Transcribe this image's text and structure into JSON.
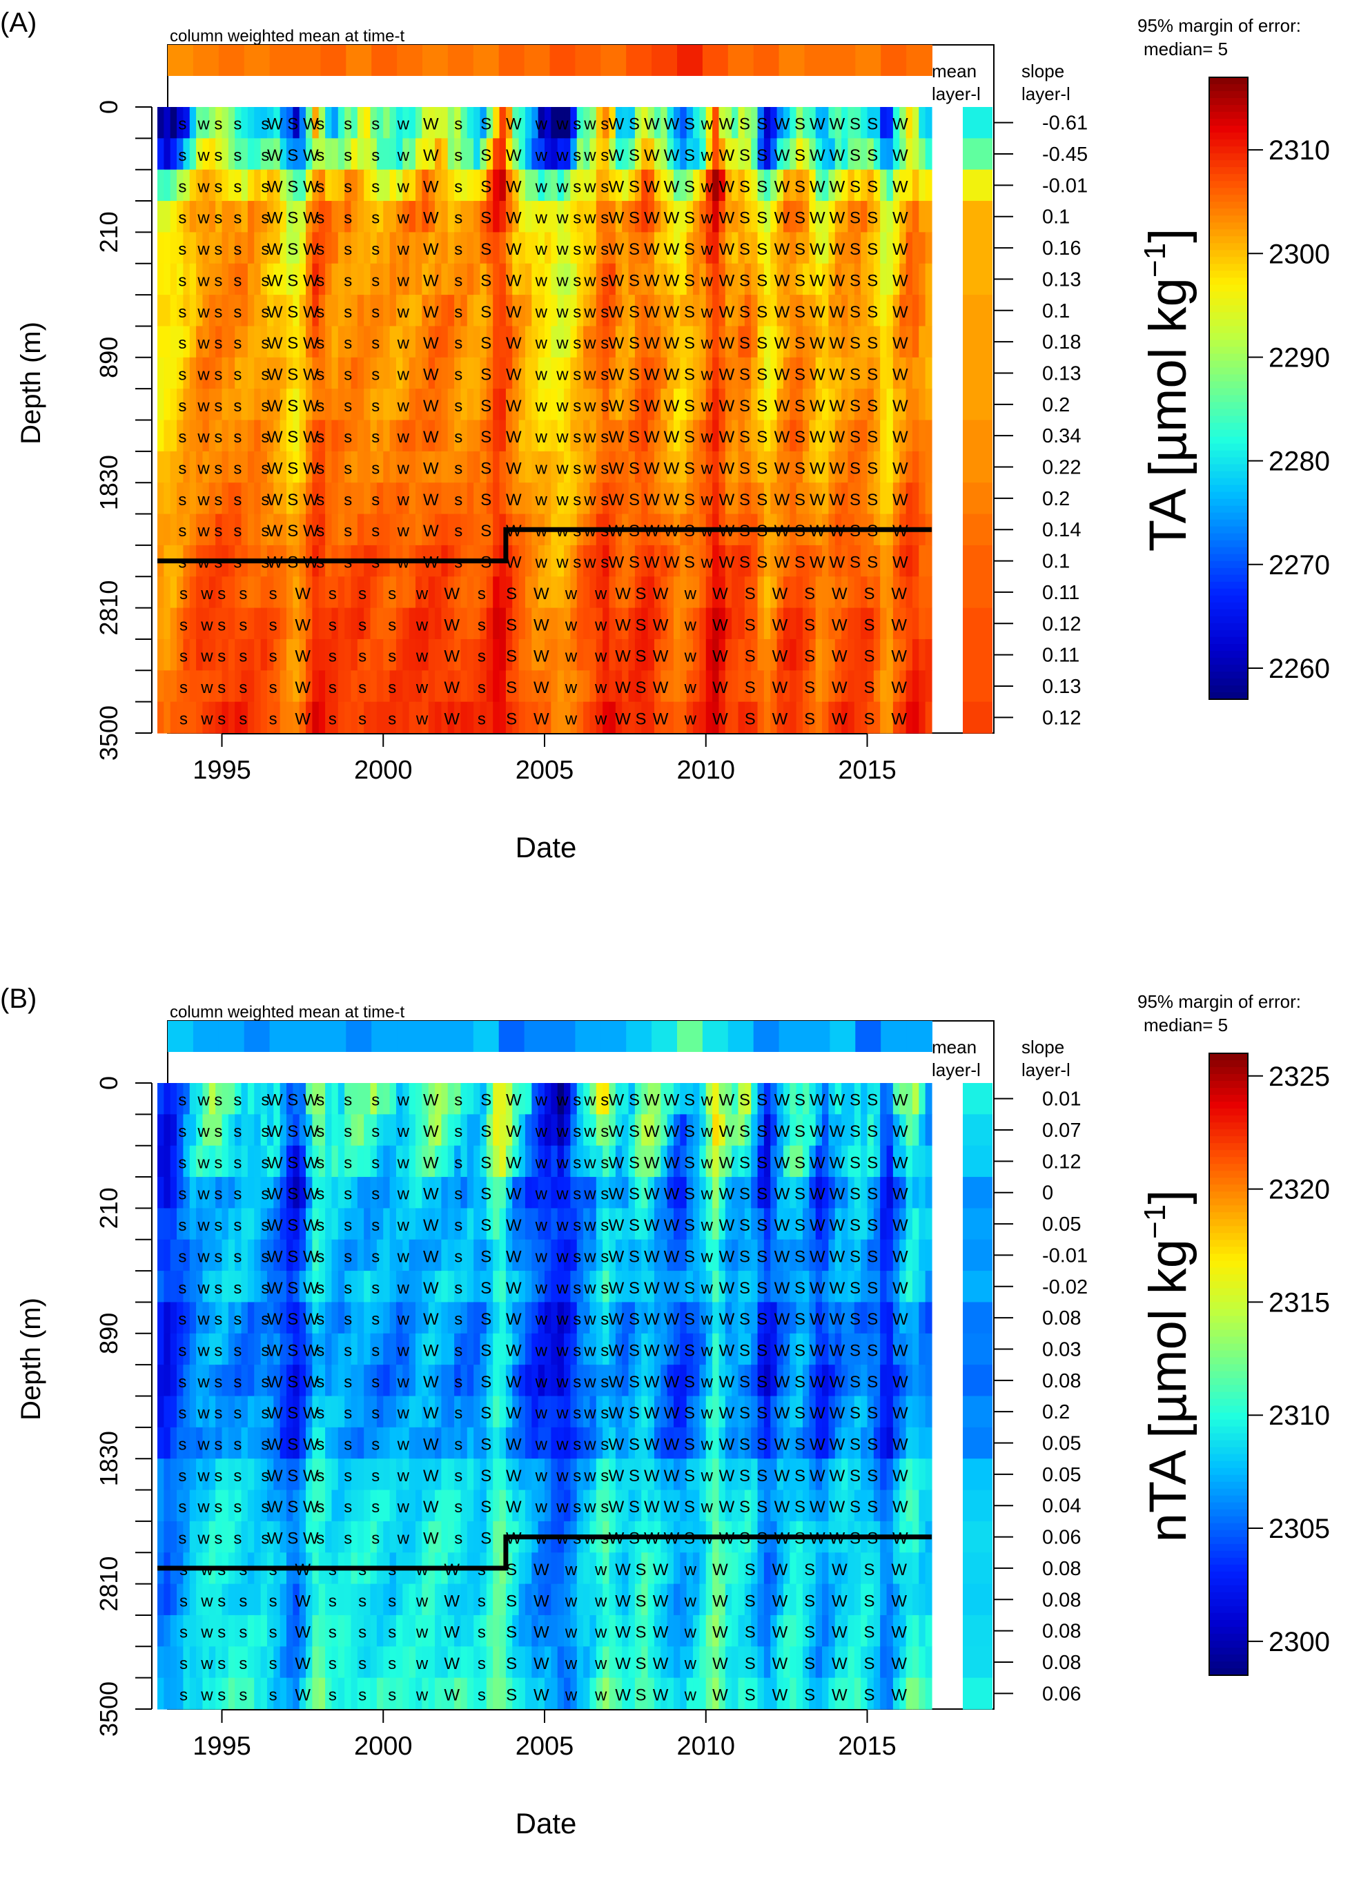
{
  "palette": [
    "#00007F",
    "#0000D0",
    "#0020FF",
    "#0070FF",
    "#00C0FF",
    "#20FFDF",
    "#70FF8F",
    "#C0FF3F",
    "#FFEF00",
    "#FFA000",
    "#FF5000",
    "#E80000",
    "#7F0000"
  ],
  "panels": [
    {
      "panel_label": "(A)",
      "strip_title": "column weighted mean at time-t",
      "mean_label_1": "mean",
      "mean_label_2": "layer-l",
      "slope_label_1": "slope",
      "slope_label_2": "layer-l",
      "x_axis_label": "Date",
      "y_axis_label": "Depth (m)",
      "moe_label_1": "95% margin of error:",
      "moe_label_2": "median= 5",
      "colorbar_title": "TA [µmol kg⁻¹]",
      "colorbar_title_main": "TA [",
      "colorbar_title_mu": "µ",
      "colorbar_title_unit": "mol kg",
      "colorbar_title_exp": "−1",
      "colorbar_title_end": "]",
      "chart_data": {
        "type": "heatmap",
        "title": "column weighted mean at time-t",
        "xlabel": "Date",
        "ylabel": "Depth (m)",
        "xlim": [
          1993.0,
          2017.0
        ],
        "x_ticks": [
          "1995",
          "2000",
          "2005",
          "2010",
          "2015"
        ],
        "x_tick_values": [
          1995,
          2000,
          2005,
          2010,
          2015
        ],
        "ylim": [
          0,
          3500
        ],
        "y_ticks": [
          "0",
          "210",
          "890",
          "1830",
          "2810",
          "3500"
        ],
        "y_tick_rows": [
          0,
          4,
          8,
          12,
          16,
          20
        ],
        "n_layers": 20,
        "slopes": [
          "-0.61",
          "-0.45",
          "-0.01",
          "0.1",
          "0.16",
          "0.13",
          "0.1",
          "0.18",
          "0.13",
          "0.2",
          "0.34",
          "0.22",
          "0.2",
          "0.14",
          "0.1",
          "0.11",
          "0.12",
          "0.11",
          "0.13",
          "0.12"
        ],
        "slope_significant": [
          true,
          true,
          false,
          true,
          true,
          true,
          true,
          true,
          true,
          true,
          true,
          true,
          true,
          true,
          true,
          true,
          true,
          true,
          true,
          true
        ],
        "layer_means": [
          2281,
          2286,
          2296,
          2301,
          2301,
          2301,
          2302,
          2302,
          2302,
          2302,
          2303,
          2303,
          2304,
          2305,
          2306,
          2306,
          2307,
          2307,
          2307,
          2308
        ],
        "column_mean": [
          2303,
          2304,
          2305,
          2304,
          2305,
          2305,
          2306,
          2304,
          2306,
          2305,
          2304,
          2305,
          2304,
          2306,
          2305,
          2307,
          2306,
          2305,
          2307,
          2308,
          2310,
          2307,
          2305,
          2306,
          2304,
          2305,
          2305,
          2304,
          2306,
          2305
        ],
        "layer_pattern_amplitude": [
          26,
          20,
          14,
          9,
          8,
          8,
          7,
          7,
          6,
          6,
          6,
          5,
          5,
          5,
          5,
          5,
          5,
          5,
          5,
          5
        ],
        "regime_line": {
          "depth_row_before": 14.5,
          "depth_row_after": 13.5,
          "break_year": 2003.8
        },
        "colorbar": {
          "min": 2257,
          "max": 2317,
          "ticks": [
            "2260",
            "2270",
            "2280",
            "2290",
            "2300",
            "2310"
          ],
          "tick_values": [
            2260,
            2270,
            2280,
            2290,
            2300,
            2310
          ]
        },
        "marker_row_full": [
          "s",
          "w s",
          "s",
          "s",
          "W S W",
          "s",
          "s",
          "s",
          "w",
          "W",
          "s",
          "S",
          "W",
          "w",
          "w s",
          "w s",
          "W S",
          "W",
          "W S",
          "w",
          "W S",
          "S",
          "W S",
          "W",
          "W S",
          "S",
          "W"
        ],
        "marker_row_deep": [
          "s",
          "w s",
          "s",
          "s",
          "W",
          "s",
          "s",
          "s",
          "w",
          "W",
          "s",
          "S",
          "W",
          "w",
          "w",
          "W S",
          "W",
          "w",
          "W",
          "S",
          "W",
          "S",
          "W",
          "S",
          "W"
        ]
      }
    },
    {
      "panel_label": "(B)",
      "strip_title": "column weighted mean at time-t",
      "mean_label_1": "mean",
      "mean_label_2": "layer-l",
      "slope_label_1": "slope",
      "slope_label_2": "layer-l",
      "x_axis_label": "Date",
      "y_axis_label": "Depth (m)",
      "moe_label_1": "95% margin of error:",
      "moe_label_2": "median= 5",
      "colorbar_title": "nTA [µmol kg⁻¹]",
      "colorbar_title_main": "nTA [",
      "colorbar_title_mu": "µ",
      "colorbar_title_unit": "mol kg",
      "colorbar_title_exp": "−1",
      "colorbar_title_end": "]",
      "chart_data": {
        "type": "heatmap",
        "title": "column weighted mean at time-t",
        "xlabel": "Date",
        "ylabel": "Depth (m)",
        "xlim": [
          1993.0,
          2017.0
        ],
        "x_ticks": [
          "1995",
          "2000",
          "2005",
          "2010",
          "2015"
        ],
        "x_tick_values": [
          1995,
          2000,
          2005,
          2010,
          2015
        ],
        "ylim": [
          0,
          3500
        ],
        "y_ticks": [
          "0",
          "210",
          "890",
          "1830",
          "2810",
          "3500"
        ],
        "y_tick_rows": [
          0,
          4,
          8,
          12,
          16,
          20
        ],
        "n_layers": 20,
        "slopes": [
          "0.01",
          "0.07",
          "0.12",
          "0",
          "0.05",
          "-0.01",
          "-0.02",
          "0.08",
          "0.03",
          "0.08",
          "0.2",
          "0.05",
          "0.05",
          "0.04",
          "0.06",
          "0.08",
          "0.08",
          "0.08",
          "0.08",
          "0.06"
        ],
        "slope_significant": [
          false,
          false,
          false,
          false,
          false,
          false,
          false,
          true,
          false,
          true,
          true,
          true,
          true,
          true,
          true,
          true,
          true,
          true,
          true,
          false
        ],
        "layer_means": [
          2309.5,
          2308.5,
          2308.2,
          2306.2,
          2306.8,
          2306.4,
          2307.2,
          2305.6,
          2305.8,
          2305.2,
          2306.2,
          2305.8,
          2307.8,
          2308.2,
          2308.6,
          2308.4,
          2308.2,
          2308.6,
          2308.7,
          2309.6
        ],
        "column_mean": [
          2308,
          2307,
          2307,
          2306,
          2307,
          2307,
          2307,
          2306,
          2307,
          2307,
          2307,
          2307,
          2308,
          2305,
          2306,
          2306,
          2307,
          2307,
          2308,
          2309,
          2312,
          2309,
          2308,
          2306,
          2307,
          2307,
          2308,
          2305,
          2307,
          2307
        ],
        "layer_pattern_amplitude": [
          8,
          7,
          6,
          5,
          4.5,
          4,
          4,
          4,
          4,
          4,
          4,
          4,
          3.5,
          3.5,
          3.5,
          3.5,
          3.5,
          3.5,
          3.5,
          4
        ],
        "regime_line": {
          "depth_row_before": 15.5,
          "depth_row_after": 14.5,
          "break_year": 2003.8
        },
        "colorbar": {
          "min": 2298.5,
          "max": 2326,
          "ticks": [
            "2300",
            "2305",
            "2310",
            "2315",
            "2320",
            "2325"
          ],
          "tick_values": [
            2300,
            2305,
            2310,
            2315,
            2320,
            2325
          ]
        },
        "marker_row_full": [
          "s",
          "w s",
          "s",
          "s",
          "W S W",
          "s",
          "s",
          "s",
          "w",
          "W",
          "s",
          "S",
          "W",
          "w",
          "w s",
          "w s",
          "W S",
          "W",
          "W S",
          "w",
          "W S",
          "S",
          "W S",
          "W",
          "W S",
          "S",
          "W"
        ],
        "marker_row_deep": [
          "s",
          "w s",
          "s",
          "s",
          "W",
          "s",
          "s",
          "s",
          "w",
          "W",
          "s",
          "S",
          "W",
          "w",
          "w",
          "W S",
          "W",
          "w",
          "W",
          "S",
          "W",
          "S",
          "W",
          "S",
          "W"
        ]
      }
    }
  ]
}
